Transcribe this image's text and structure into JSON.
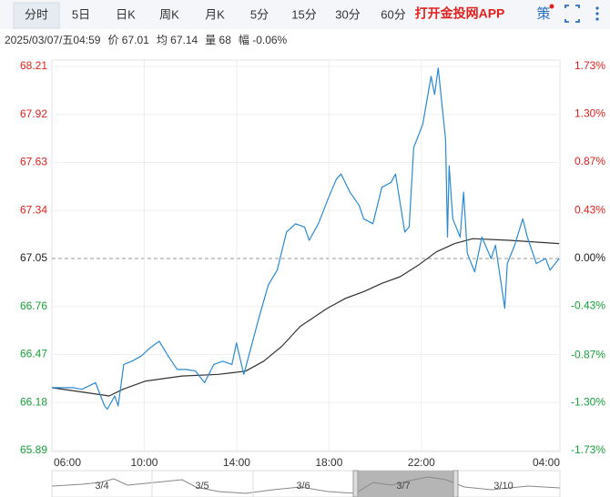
{
  "toolbar": {
    "tabs": [
      "分时",
      "5日",
      "日K",
      "周K",
      "月K",
      "5分",
      "15分",
      "30分",
      "60分"
    ],
    "app_link": "打开金投网APP",
    "strategy": "策"
  },
  "info": [
    "2025/03/07/五04:59",
    "价 67.01",
    "均 67.14",
    "量 68",
    "幅 -0.06%"
  ],
  "navigator": [
    "3/4",
    "3/5",
    "3/6",
    "3/7",
    "3/10"
  ],
  "chart_data": {
    "type": "line",
    "x": [
      6.0,
      6.91,
      7.3,
      7.89,
      8.28,
      8.4,
      8.72,
      8.87,
      9.11,
      9.46,
      9.86,
      10.25,
      10.65,
      11.04,
      11.43,
      11.83,
      12.22,
      12.61,
      13.01,
      13.4,
      13.8,
      13.99,
      14.31,
      14.62,
      14.98,
      15.37,
      15.76,
      16.16,
      16.55,
      16.94,
      17.14,
      17.54,
      17.93,
      18.32,
      18.52,
      18.91,
      19.31,
      19.5,
      19.9,
      20.29,
      20.69,
      20.88,
      21.28,
      21.47,
      21.67,
      22.06,
      22.42,
      22.57,
      22.73,
      23.05,
      23.13,
      23.2,
      23.36,
      23.68,
      23.83,
      23.99,
      24.31,
      24.62,
      25.02,
      25.21,
      25.61,
      25.72,
      26.04,
      26.39,
      26.59,
      26.98,
      27.38,
      27.57,
      27.97
    ],
    "series": [
      {
        "color": "#2b8ad2",
        "values": [
          66.27,
          66.27,
          66.26,
          66.3,
          66.16,
          66.14,
          66.22,
          66.16,
          66.41,
          66.43,
          66.46,
          66.51,
          66.55,
          66.46,
          66.38,
          66.38,
          66.37,
          66.3,
          66.41,
          66.43,
          66.41,
          66.54,
          66.35,
          66.51,
          66.7,
          66.89,
          66.98,
          67.21,
          67.26,
          67.24,
          67.16,
          67.26,
          67.4,
          67.53,
          67.56,
          67.45,
          67.37,
          67.29,
          67.26,
          67.48,
          67.51,
          67.56,
          67.21,
          67.24,
          67.72,
          67.86,
          68.15,
          68.04,
          68.2,
          67.77,
          67.18,
          67.61,
          67.29,
          67.18,
          67.45,
          67.08,
          66.97,
          67.18,
          67.05,
          67.13,
          66.75,
          67.02,
          67.13,
          67.29,
          67.18,
          67.02,
          67.05,
          66.98,
          67.05
        ]
      }
    ],
    "mean_line": {
      "color": "#333333",
      "x": [
        6.0,
        8.48,
        9.07,
        10.06,
        11.63,
        13.2,
        14.39,
        15.17,
        15.96,
        16.75,
        17.93,
        18.72,
        19.5,
        20.29,
        21.08,
        21.87,
        22.65,
        23.44,
        24.23,
        25.8,
        27.97
      ],
      "values": [
        66.27,
        66.22,
        66.26,
        66.31,
        66.34,
        66.35,
        66.37,
        66.43,
        66.52,
        66.64,
        66.75,
        66.81,
        66.85,
        66.9,
        66.94,
        67.01,
        67.09,
        67.14,
        67.17,
        67.16,
        67.14
      ]
    },
    "xlim": [
      6,
      28
    ],
    "xticks": [
      {
        "value": 6,
        "label": "06:00"
      },
      {
        "value": 10,
        "label": "10:00"
      },
      {
        "value": 14,
        "label": "14:00"
      },
      {
        "value": 18,
        "label": "18:00"
      },
      {
        "value": 22,
        "label": "22:00"
      },
      {
        "value": 28,
        "label": "04:00"
      }
    ],
    "ylim": [
      65.89,
      68.21
    ],
    "yticks": [
      65.89,
      66.18,
      66.47,
      66.76,
      67.05,
      67.34,
      67.63,
      67.92,
      68.21
    ],
    "baseline": 67.05,
    "y2lim": [
      -1.73,
      1.73
    ],
    "y2ticks": [
      {
        "value": -1.73,
        "label": "-1.73%"
      },
      {
        "value": -1.3,
        "label": "-1.30%"
      },
      {
        "value": -0.87,
        "label": "-0.87%"
      },
      {
        "value": -0.43,
        "label": "-0.43%"
      },
      {
        "value": 0,
        "label": "0.00%"
      },
      {
        "value": 0.43,
        "label": "0.43%"
      },
      {
        "value": 0.87,
        "label": "0.87%"
      },
      {
        "value": 1.3,
        "label": "1.30%"
      },
      {
        "value": 1.73,
        "label": "1.73%"
      }
    ],
    "up_color": "#e0211f",
    "down_color": "#18a03a",
    "flat_color": "#222222",
    "grid": true
  }
}
